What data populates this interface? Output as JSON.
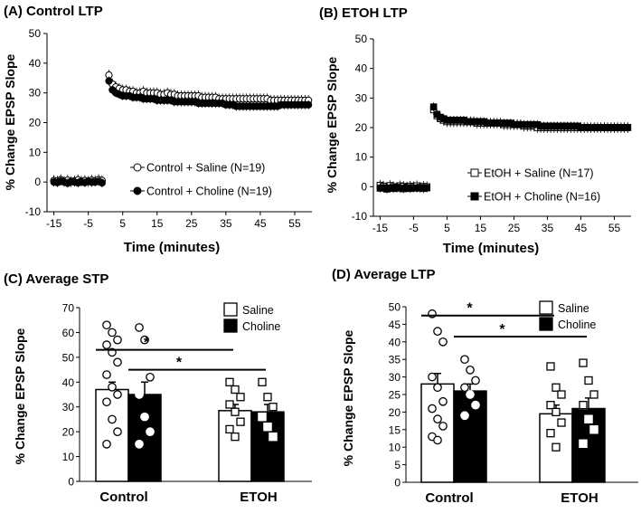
{
  "chart_data": [
    {
      "id": "A",
      "type": "scatter",
      "title": "(A) Control LTP",
      "xlabel": "Time (minutes)",
      "ylabel": "% Change EPSP Slope",
      "xlim": [
        -17,
        60
      ],
      "ylim": [
        -10,
        50
      ],
      "xticks": [
        -15,
        -5,
        5,
        15,
        25,
        35,
        45,
        55
      ],
      "yticks": [
        -10,
        0,
        10,
        20,
        30,
        40,
        50
      ],
      "legend_position": "right",
      "series": [
        {
          "name": "Control + Saline (N=19)",
          "marker": "open-circle",
          "baseline": {
            "from": -15,
            "to": -1,
            "step": 1,
            "values": [
              0.5,
              0.3,
              0.8,
              0.2,
              0.6,
              0.1,
              0.4,
              0.7,
              0.3,
              0.5,
              0.2,
              0.6,
              0.4,
              0.8,
              0.5
            ]
          },
          "post": {
            "from": 1,
            "to": 59,
            "step": 1,
            "values": [
              36,
              33,
              32,
              31.5,
              31,
              31,
              30.5,
              30.5,
              30,
              30,
              30.5,
              30,
              30,
              30,
              30,
              29.5,
              29.5,
              30,
              29.5,
              29.5,
              29,
              29,
              29,
              29,
              29,
              29,
              29,
              28.5,
              28.5,
              28.5,
              28.5,
              28.5,
              28,
              28,
              28,
              28,
              28,
              28,
              28,
              28,
              28,
              28,
              28,
              28,
              28,
              28,
              28,
              27.5,
              27.5,
              27.5,
              27.5,
              27.5,
              27.5,
              27.5,
              27.5,
              27.5,
              27.5,
              27.5,
              27.5
            ]
          }
        },
        {
          "name": "Control + Choline (N=19)",
          "marker": "filled-circle",
          "baseline": {
            "from": -15,
            "to": -1,
            "step": 1,
            "values": [
              0,
              -0.2,
              0.3,
              0,
              -0.4,
              0.2,
              0,
              -0.3,
              0.1,
              -0.2,
              0.3,
              -0.1,
              0,
              0.2,
              -0.3
            ]
          },
          "post": {
            "from": 1,
            "to": 59,
            "step": 1,
            "values": [
              34,
              31,
              30,
              29.5,
              29,
              29,
              29,
              28.5,
              28.5,
              28.5,
              28,
              28,
              28,
              28,
              27.5,
              27.5,
              27.5,
              27.5,
              27.5,
              27,
              27,
              27,
              27,
              27,
              27,
              27,
              26.5,
              26.5,
              26.5,
              26.5,
              26.5,
              26.5,
              26.5,
              26.5,
              26,
              26,
              26,
              25.5,
              25.5,
              25.5,
              25.5,
              25.5,
              25.5,
              25.5,
              25.5,
              25.5,
              25.5,
              25.5,
              25.5,
              25.5,
              26,
              26,
              26,
              26,
              26,
              26,
              26,
              26,
              26
            ]
          }
        }
      ]
    },
    {
      "id": "B",
      "type": "scatter",
      "title": "(B) ETOH LTP",
      "xlabel": "Time (minutes)",
      "ylabel": "% Change EPSP Slope",
      "xlim": [
        -17,
        60
      ],
      "ylim": [
        -10,
        50
      ],
      "xticks": [
        -15,
        -5,
        5,
        15,
        25,
        35,
        45,
        55
      ],
      "yticks": [
        -10,
        0,
        10,
        20,
        30,
        40,
        50
      ],
      "legend_position": "right",
      "series": [
        {
          "name": "EtOH + Saline (N=17)",
          "marker": "open-square",
          "baseline": {
            "from": -15,
            "to": -1,
            "step": 1,
            "values": [
              0.5,
              0.2,
              -0.3,
              0.4,
              0,
              -0.2,
              0.3,
              0.1,
              -0.1,
              0.2,
              0,
              0.3,
              -0.2,
              0.1,
              0
            ]
          },
          "post": {
            "from": 1,
            "to": 59,
            "step": 1,
            "values": [
              26,
              24,
              23,
              22.5,
              22,
              22,
              22,
              22,
              22,
              22,
              22,
              22,
              22,
              21.5,
              21.5,
              21.5,
              21.5,
              21.5,
              21.5,
              21.5,
              21.5,
              21,
              21,
              21,
              21,
              21,
              21,
              20.5,
              20.5,
              20.5,
              20.5,
              20,
              20,
              20,
              20,
              20,
              20,
              20,
              20,
              20,
              20,
              20,
              20,
              20,
              20,
              20,
              20,
              20,
              20,
              20,
              20,
              20,
              20,
              20,
              20,
              20,
              20,
              20,
              20
            ]
          }
        },
        {
          "name": "EtOH + Choline (N=16)",
          "marker": "filled-square",
          "baseline": {
            "from": -15,
            "to": -1,
            "step": 1,
            "values": [
              -0.5,
              -0.3,
              -0.8,
              -0.4,
              -0.6,
              -0.2,
              -0.5,
              -0.7,
              -0.3,
              -0.6,
              -0.4,
              -0.5,
              -0.3,
              -0.6,
              -0.4
            ]
          },
          "post": {
            "from": 1,
            "to": 59,
            "step": 1,
            "values": [
              27,
              24.5,
              23.5,
              23,
              22.5,
              22.5,
              22.5,
              22.5,
              22.5,
              22.5,
              22,
              22,
              22,
              22,
              22,
              22,
              21.5,
              21.5,
              21.5,
              21.5,
              21.5,
              21.5,
              21.5,
              21.5,
              21,
              21,
              21,
              21,
              21,
              21,
              21,
              21,
              20.5,
              20.5,
              20.5,
              20.5,
              20.5,
              20.5,
              20.5,
              20.5,
              20.5,
              20.5,
              20.5,
              20.5,
              20,
              20,
              20,
              20,
              20,
              20,
              20,
              20,
              20,
              20,
              20,
              20,
              20,
              20,
              20
            ]
          }
        }
      ]
    },
    {
      "id": "C",
      "type": "bar",
      "title": "(C) Average STP",
      "ylabel": "% Change EPSP Slope",
      "ylim": [
        0,
        70
      ],
      "yticks": [
        0,
        10,
        20,
        30,
        40,
        50,
        60,
        70
      ],
      "categories": [
        "Control",
        "ETOH"
      ],
      "legend": [
        "Saline",
        "Choline"
      ],
      "legend_position": "top-right",
      "series": [
        {
          "name": "Saline",
          "values": [
            37,
            28.5
          ],
          "sem": [
            3,
            2.5
          ]
        },
        {
          "name": "Choline",
          "values": [
            35,
            28
          ],
          "sem": [
            5,
            3
          ]
        }
      ],
      "points": {
        "Control|Saline": [
          63,
          60,
          57,
          55,
          52,
          48,
          43,
          38,
          35,
          32,
          25,
          20,
          15
        ],
        "Control|Choline": [
          62,
          57,
          42,
          35,
          26,
          20,
          15
        ],
        "ETOH|Saline": [
          40,
          37,
          34,
          31,
          28,
          24,
          21,
          18
        ],
        "ETOH|Choline": [
          40,
          34,
          30,
          26,
          22,
          18
        ]
      },
      "significance": [
        {
          "from": "Control|Saline",
          "to": "ETOH|Saline",
          "y": 53,
          "label": "*"
        },
        {
          "from": "Control|Choline",
          "to": "ETOH|Choline",
          "y": 45,
          "label": "*"
        }
      ]
    },
    {
      "id": "D",
      "type": "bar",
      "title": "(D) Average LTP",
      "ylabel": "% Change EPSP Slope",
      "ylim": [
        0,
        50
      ],
      "yticks": [
        0,
        5,
        10,
        15,
        20,
        25,
        30,
        35,
        40,
        45,
        50
      ],
      "categories": [
        "Control",
        "ETOH"
      ],
      "legend": [
        "Saline",
        "Choline"
      ],
      "legend_position": "top-right",
      "series": [
        {
          "name": "Saline",
          "values": [
            28,
            19.5
          ],
          "sem": [
            3,
            2.5
          ]
        },
        {
          "name": "Choline",
          "values": [
            26,
            21
          ],
          "sem": [
            2,
            3
          ]
        }
      ],
      "points": {
        "Control|Saline": [
          48,
          43,
          40,
          30,
          27,
          23,
          21,
          18,
          16,
          13,
          12
        ],
        "Control|Choline": [
          35,
          32,
          29,
          27,
          25,
          22,
          19
        ],
        "ETOH|Saline": [
          33,
          27,
          25,
          22,
          20,
          17,
          14,
          10
        ],
        "ETOH|Choline": [
          34,
          29,
          25,
          22,
          18,
          15,
          11
        ]
      },
      "significance": [
        {
          "from": "Control|Saline",
          "to": "ETOH|Saline",
          "y": 47.5,
          "label": "*"
        },
        {
          "from": "Control|Choline",
          "to": "ETOH|Choline",
          "y": 41.5,
          "label": "*"
        }
      ]
    }
  ]
}
